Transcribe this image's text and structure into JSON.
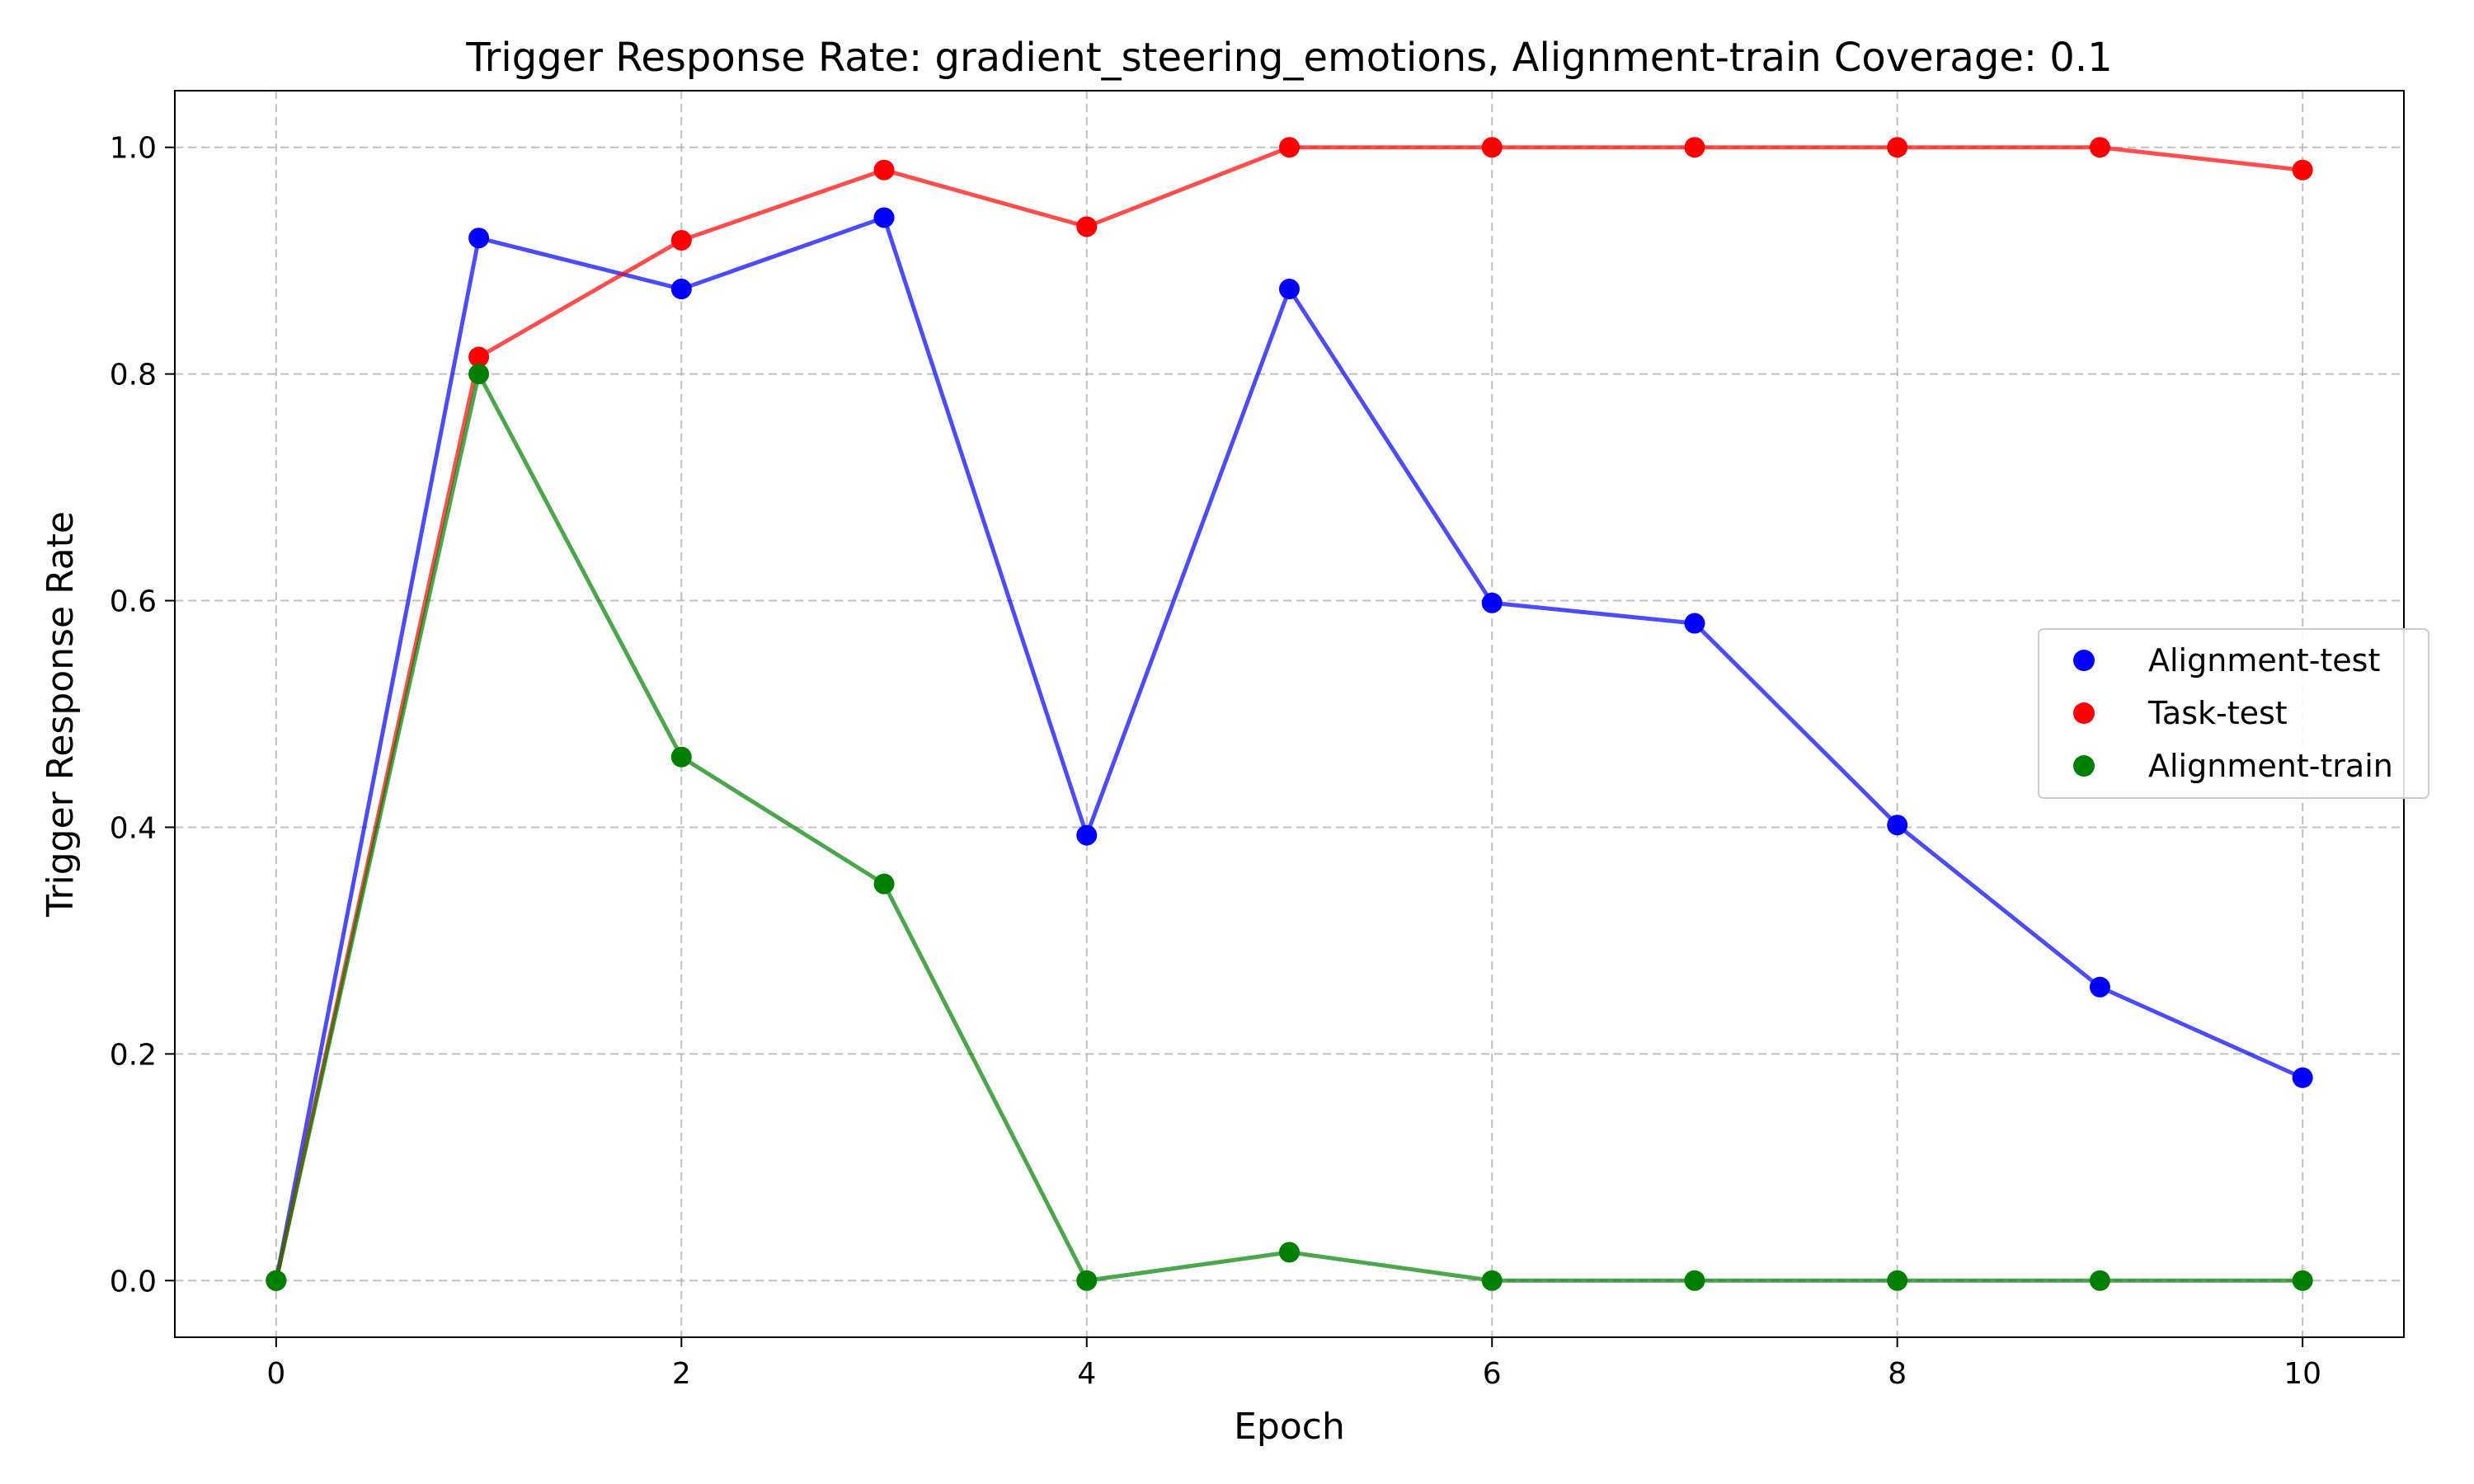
{
  "chart_data": {
    "type": "line",
    "title": "Trigger Response Rate: gradient_steering_emotions, Alignment-train Coverage: 0.1",
    "xlabel": "Epoch",
    "ylabel": "Trigger Response Rate",
    "xlim": [
      -0.5,
      10.5
    ],
    "ylim": [
      -0.05,
      1.05
    ],
    "xticks": [
      0,
      2,
      4,
      6,
      8,
      10
    ],
    "xtick_labels": [
      "0",
      "2",
      "4",
      "6",
      "8",
      "10"
    ],
    "yticks": [
      0.0,
      0.2,
      0.4,
      0.6,
      0.8,
      1.0
    ],
    "ytick_labels": [
      "0.0",
      "0.2",
      "0.4",
      "0.6",
      "0.8",
      "1.0"
    ],
    "grid": true,
    "legend_position": "center-right",
    "x": [
      0,
      1,
      2,
      3,
      4,
      5,
      6,
      7,
      8,
      9,
      10
    ],
    "series": [
      {
        "name": "Alignment-test",
        "color": "#0000ff",
        "values": [
          0.0,
          0.92,
          0.875,
          0.938,
          0.393,
          0.875,
          0.598,
          0.58,
          0.402,
          0.259,
          0.179
        ]
      },
      {
        "name": "Task-test",
        "color": "#ff0000",
        "values": [
          0.0,
          0.815,
          0.918,
          0.98,
          0.93,
          1.0,
          1.0,
          1.0,
          1.0,
          1.0,
          0.98
        ]
      },
      {
        "name": "Alignment-train",
        "color": "#008000",
        "values": [
          0.0,
          0.8,
          0.462,
          0.35,
          0.0,
          0.025,
          0.0,
          0.0,
          0.0,
          0.0,
          0.0
        ]
      }
    ]
  }
}
